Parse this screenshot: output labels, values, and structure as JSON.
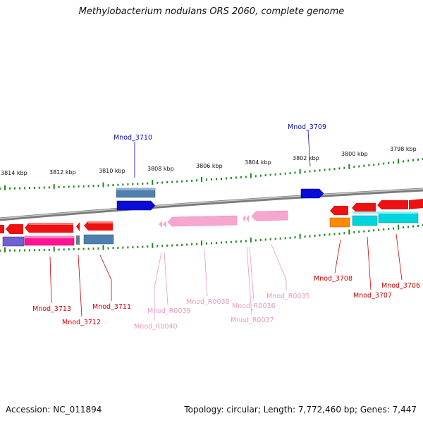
{
  "title": "Methylobacterium nodulans ORS 2060, complete genome",
  "footer": {
    "accession": "Accession: NC_011894",
    "summary": "Topology: circular; Length: 7,772,460 bp; Genes: 7,447"
  },
  "colors": {
    "backbone": "#808080",
    "tick": "#1a8a1a",
    "cds_red": "#ee1111",
    "rrna_pink": "#f7a6cf",
    "blue_gene": "#0b0bd6",
    "steel_blue": "#4f7fae",
    "magenta": "#ff1493",
    "slate": "#7060d0",
    "orange": "#ff8a00",
    "cyan": "#00d4dc",
    "label_blue": "#0b0bbb",
    "label_red": "#cc0000",
    "label_pink": "#e59ac2"
  },
  "scale_labels": [
    "3814 kbp",
    "3812 kbp",
    "3810 kbp",
    "3808 kbp",
    "3806 kbp",
    "3804 kbp",
    "3802 kbp",
    "3800 kbp",
    "3798 kbp"
  ],
  "gene_labels": [
    "Mnod_3710",
    "Mnod_3709",
    "Mnod_3713",
    "Mnod_3712",
    "Mnod_3711",
    "Mnod_R0039",
    "Mnod_R0040",
    "Mnod_R0038",
    "Mnod_R0036",
    "Mnod_R0037",
    "Mnod_R0035",
    "Mnod_3708",
    "Mnod_3707",
    "Mnod_3706"
  ]
}
